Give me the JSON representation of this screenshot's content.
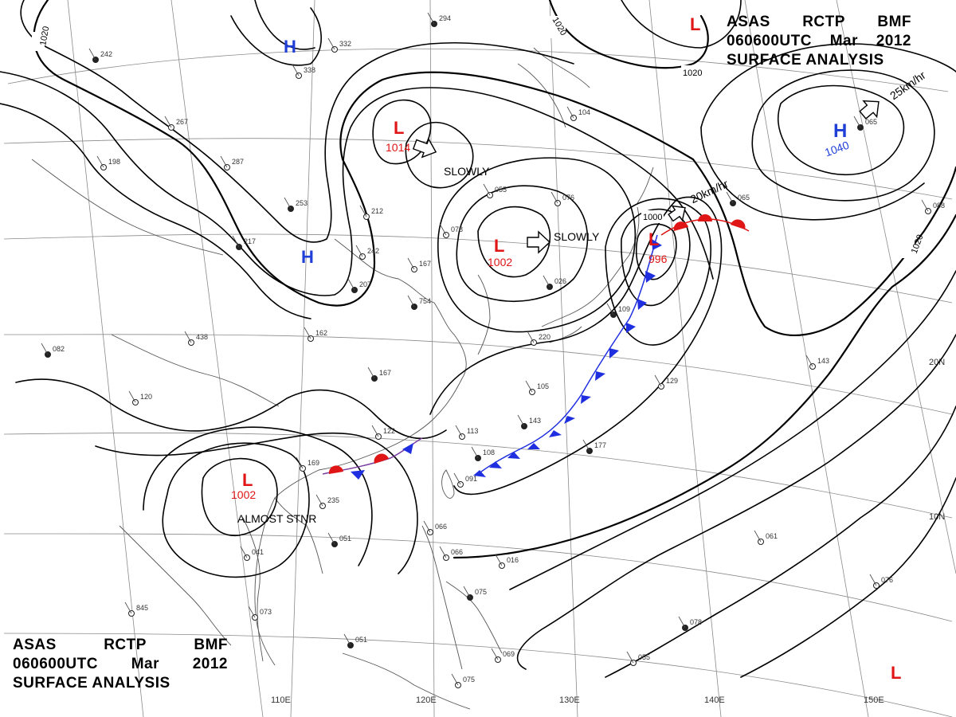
{
  "header": {
    "agency": "ASAS",
    "station": "RCTP",
    "office": "BMF",
    "time": "060600UTC",
    "month": "Mar",
    "year": "2012",
    "title": "SURFACE ANALYSIS"
  },
  "grid_labels": {
    "lon": [
      "110E",
      "120E",
      "130E",
      "140E",
      "150E"
    ],
    "lat": [
      "20N",
      "10N"
    ]
  },
  "pressure_centers": [
    {
      "id": "H1",
      "type": "H",
      "value": ""
    },
    {
      "id": "H2",
      "type": "H",
      "value": ""
    },
    {
      "id": "H3",
      "type": "H",
      "value": "1040"
    },
    {
      "id": "L1",
      "type": "L",
      "value": "1014"
    },
    {
      "id": "L2",
      "type": "L",
      "value": "1002"
    },
    {
      "id": "L3",
      "type": "L",
      "value": "996"
    },
    {
      "id": "L4",
      "type": "L",
      "value": "1002"
    },
    {
      "id": "L5",
      "type": "L",
      "value": ""
    },
    {
      "id": "L6",
      "type": "L",
      "value": ""
    }
  ],
  "movements": [
    {
      "id": "m1",
      "text": "SLOWLY"
    },
    {
      "id": "m2",
      "text": "SLOWLY"
    },
    {
      "id": "m3",
      "text": "20km/hr"
    },
    {
      "id": "m4",
      "text": "25km/hr"
    },
    {
      "id": "m5",
      "text": "ALMOST STNR"
    }
  ],
  "isobar_labels": [
    "1020",
    "1020",
    "1020",
    "1020",
    "1000"
  ],
  "colors": {
    "high": "#1f3fd6",
    "low": "#e01515",
    "cold_front": "#1f2fe0",
    "warm_front": "#e01515",
    "isobar": "#000000",
    "coast": "#555555",
    "grid": "#777777"
  },
  "station_samples": [
    "294",
    "332",
    "338",
    "242",
    "267",
    "287",
    "253",
    "212",
    "242",
    "207",
    "167",
    "162",
    "167",
    "122",
    "113",
    "108",
    "091",
    "105",
    "143",
    "129",
    "143",
    "177",
    "169",
    "235",
    "051",
    "041",
    "073",
    "051",
    "066",
    "066",
    "075",
    "069",
    "075",
    "078",
    "055",
    "061",
    "065",
    "055",
    "078",
    "109",
    "088",
    "120",
    "082",
    "076",
    "104",
    "065",
    "076",
    "016",
    "026",
    "220",
    "198",
    "217",
    "438",
    "845",
    "754"
  ]
}
